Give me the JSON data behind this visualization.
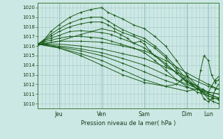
{
  "title": "",
  "xlabel": "Pression niveau de la mer( hPa )",
  "bg_color": "#cce8e4",
  "grid_color": "#aacccc",
  "line_color": "#1a5c1a",
  "ylim": [
    1009.5,
    1020.5
  ],
  "xlim": [
    0.0,
    2.83
  ],
  "yticks": [
    1010,
    1011,
    1012,
    1013,
    1014,
    1015,
    1016,
    1017,
    1018,
    1019,
    1020
  ],
  "day_labels": [
    "Jeu",
    "Ven",
    "Sam",
    "Dim",
    "Lun"
  ],
  "day_x": [
    0.33,
    1.0,
    1.67,
    2.33,
    2.67
  ],
  "lines": [
    {
      "x": [
        0.0,
        0.08,
        0.2,
        0.33,
        0.5,
        0.67,
        0.83,
        1.0,
        1.1,
        1.2,
        1.33,
        1.5,
        1.67,
        1.83,
        2.0,
        2.17,
        2.33,
        2.5,
        2.67,
        2.75,
        2.83
      ],
      "y": [
        1016.2,
        1016.5,
        1017.5,
        1018.2,
        1019.0,
        1019.5,
        1019.8,
        1020.0,
        1019.5,
        1019.2,
        1018.8,
        1018.2,
        1017.8,
        1017.0,
        1016.0,
        1014.5,
        1013.0,
        1011.8,
        1010.5,
        1010.2,
        1010.0
      ]
    },
    {
      "x": [
        0.0,
        0.08,
        0.2,
        0.33,
        0.5,
        0.67,
        0.83,
        1.0,
        1.1,
        1.2,
        1.33,
        1.5,
        1.67,
        1.83,
        2.0,
        2.17,
        2.33,
        2.5,
        2.67,
        2.75,
        2.83
      ],
      "y": [
        1016.2,
        1016.6,
        1017.2,
        1017.8,
        1018.4,
        1018.8,
        1019.0,
        1019.0,
        1018.6,
        1018.2,
        1017.7,
        1017.2,
        1016.8,
        1016.0,
        1015.0,
        1013.8,
        1012.5,
        1011.5,
        1010.8,
        1010.6,
        1010.5
      ]
    },
    {
      "x": [
        0.0,
        0.08,
        0.2,
        0.33,
        0.5,
        0.67,
        0.83,
        1.0,
        1.1,
        1.2,
        1.33,
        1.5,
        1.67,
        1.83,
        2.0,
        2.17,
        2.33,
        2.5,
        2.67,
        2.75,
        2.83
      ],
      "y": [
        1016.2,
        1016.5,
        1017.0,
        1017.5,
        1018.0,
        1018.3,
        1018.5,
        1018.5,
        1018.2,
        1017.8,
        1017.4,
        1017.0,
        1016.5,
        1015.8,
        1014.8,
        1013.5,
        1012.3,
        1011.5,
        1011.0,
        1010.8,
        1010.6
      ]
    },
    {
      "x": [
        0.0,
        0.08,
        0.2,
        0.33,
        0.5,
        0.67,
        0.83,
        1.0,
        1.15,
        1.3,
        1.5,
        1.67,
        1.83,
        2.0,
        2.17,
        2.33,
        2.5,
        2.67,
        2.75,
        2.83
      ],
      "y": [
        1016.2,
        1016.5,
        1016.8,
        1017.1,
        1017.5,
        1017.6,
        1017.5,
        1017.4,
        1017.2,
        1016.8,
        1016.3,
        1015.8,
        1015.0,
        1014.2,
        1013.2,
        1012.3,
        1011.5,
        1011.0,
        1010.8,
        1010.6
      ]
    },
    {
      "x": [
        0.0,
        0.08,
        0.2,
        0.33,
        0.5,
        0.67,
        0.83,
        1.0,
        1.15,
        1.3,
        1.5,
        1.67,
        1.83,
        2.0,
        2.17,
        2.33,
        2.5,
        2.67,
        2.75,
        2.83
      ],
      "y": [
        1016.2,
        1016.4,
        1016.6,
        1016.8,
        1017.0,
        1017.0,
        1016.9,
        1016.8,
        1016.5,
        1016.2,
        1015.8,
        1015.3,
        1014.5,
        1013.5,
        1012.5,
        1011.8,
        1011.2,
        1010.8,
        1010.6,
        1010.4
      ]
    },
    {
      "x": [
        0.0,
        0.33,
        0.67,
        1.0,
        1.33,
        1.67,
        2.0,
        2.33,
        2.67,
        2.83
      ],
      "y": [
        1016.2,
        1016.5,
        1016.5,
        1016.4,
        1016.0,
        1015.5,
        1014.5,
        1013.2,
        1012.0,
        1011.5
      ]
    },
    {
      "x": [
        0.0,
        0.33,
        0.67,
        1.0,
        1.33,
        1.67,
        2.0,
        2.33,
        2.67,
        2.83
      ],
      "y": [
        1016.2,
        1016.2,
        1016.0,
        1015.7,
        1015.2,
        1014.7,
        1013.8,
        1012.8,
        1011.8,
        1011.5
      ]
    },
    {
      "x": [
        0.0,
        0.33,
        0.67,
        1.0,
        1.33,
        1.67,
        2.0,
        2.33,
        2.67,
        2.83
      ],
      "y": [
        1016.2,
        1016.0,
        1015.7,
        1015.3,
        1014.7,
        1014.0,
        1013.0,
        1012.0,
        1011.2,
        1011.0
      ]
    },
    {
      "x": [
        0.0,
        0.33,
        0.67,
        1.0,
        1.33,
        1.67,
        2.0,
        2.33,
        2.67,
        2.83
      ],
      "y": [
        1016.2,
        1015.9,
        1015.5,
        1015.0,
        1014.2,
        1013.3,
        1012.4,
        1011.7,
        1011.2,
        1011.0
      ]
    },
    {
      "x": [
        0.0,
        0.33,
        0.67,
        1.0,
        1.33,
        1.67,
        2.0,
        2.33,
        2.5,
        2.55,
        2.6,
        2.67,
        2.72,
        2.78,
        2.83
      ],
      "y": [
        1016.2,
        1015.8,
        1015.2,
        1014.5,
        1013.5,
        1012.5,
        1011.8,
        1011.3,
        1011.5,
        1013.5,
        1015.0,
        1014.5,
        1013.0,
        1012.2,
        1012.5
      ]
    },
    {
      "x": [
        0.0,
        0.33,
        0.67,
        1.0,
        1.33,
        1.67,
        2.0,
        2.17,
        2.25,
        2.33,
        2.4,
        2.5,
        2.55,
        2.6,
        2.67,
        2.72,
        2.78,
        2.83
      ],
      "y": [
        1016.2,
        1015.8,
        1015.0,
        1014.0,
        1013.0,
        1012.2,
        1011.8,
        1012.0,
        1012.5,
        1012.8,
        1012.2,
        1011.8,
        1011.2,
        1010.5,
        1010.2,
        1010.5,
        1011.5,
        1012.0
      ]
    },
    {
      "x": [
        0.0,
        0.33,
        0.67,
        1.0,
        1.2,
        1.3,
        1.4,
        1.5,
        1.6,
        1.67,
        1.75,
        1.83,
        2.0,
        2.17,
        2.33,
        2.42,
        2.5,
        2.58,
        2.67,
        2.72,
        2.78,
        2.83
      ],
      "y": [
        1016.1,
        1016.5,
        1017.2,
        1017.8,
        1017.5,
        1017.2,
        1016.8,
        1016.3,
        1016.5,
        1016.2,
        1015.5,
        1015.0,
        1014.0,
        1013.2,
        1012.2,
        1012.0,
        1011.8,
        1011.5,
        1011.2,
        1011.8,
        1012.5,
        1012.8
      ]
    }
  ]
}
